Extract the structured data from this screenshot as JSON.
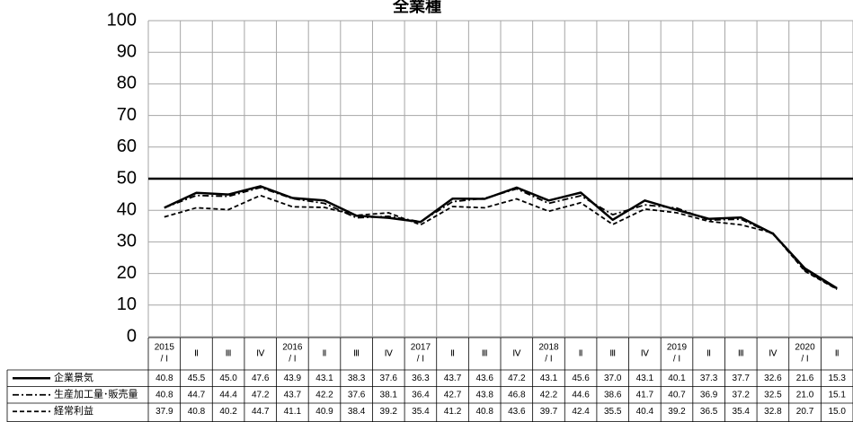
{
  "chart_data": {
    "type": "line",
    "title": "全業種",
    "ylim": [
      0,
      100
    ],
    "yticks": [
      0,
      10,
      20,
      30,
      40,
      50,
      60,
      70,
      80,
      90,
      100
    ],
    "reference_line": 50,
    "categories": [
      [
        "2015",
        "/ I"
      ],
      [
        "Ⅱ"
      ],
      [
        "Ⅲ"
      ],
      [
        "Ⅳ"
      ],
      [
        "2016",
        "/ I"
      ],
      [
        "Ⅱ"
      ],
      [
        "Ⅲ"
      ],
      [
        "Ⅳ"
      ],
      [
        "2017",
        "/ I"
      ],
      [
        "Ⅱ"
      ],
      [
        "Ⅲ"
      ],
      [
        "Ⅳ"
      ],
      [
        "2018",
        "/ I"
      ],
      [
        "Ⅱ"
      ],
      [
        "Ⅲ"
      ],
      [
        "Ⅳ"
      ],
      [
        "2019",
        "/ I"
      ],
      [
        "Ⅱ"
      ],
      [
        "Ⅲ"
      ],
      [
        "Ⅳ"
      ],
      [
        "2020",
        "/ I"
      ],
      [
        "Ⅱ"
      ]
    ],
    "series": [
      {
        "name": "企業景気",
        "style": "solid",
        "values": [
          40.8,
          45.5,
          45.0,
          47.6,
          43.9,
          43.1,
          38.3,
          37.6,
          36.3,
          43.7,
          43.6,
          47.2,
          43.1,
          45.6,
          37.0,
          43.1,
          40.1,
          37.3,
          37.7,
          32.6,
          21.6,
          15.3
        ],
        "labels": [
          "40.8",
          "45.5",
          "45.0",
          "47.6",
          "43.9",
          "43.1",
          "38.3",
          "37.6",
          "36.3",
          "43.7",
          "43.6",
          "47.2",
          "43.1",
          "45.6",
          "37.0",
          "43.1",
          "40.1",
          "37.3",
          "37.7",
          "32.6",
          "21.6",
          "15.3"
        ]
      },
      {
        "name": "生産加工量･販売量",
        "style": "dashdot",
        "values": [
          40.8,
          44.7,
          44.4,
          47.2,
          43.7,
          42.2,
          37.6,
          38.1,
          36.4,
          42.7,
          43.8,
          46.8,
          42.2,
          44.6,
          38.6,
          41.7,
          40.7,
          36.9,
          37.2,
          32.5,
          21.0,
          15.1
        ],
        "labels": [
          "40.8",
          "44.7",
          "44.4",
          "47.2",
          "43.7",
          "42.2",
          "37.6",
          "38.1",
          "36.4",
          "42.7",
          "43.8",
          "46.8",
          "42.2",
          "44.6",
          "38.6",
          "41.7",
          "40.7",
          "36.9",
          "37.2",
          "32.5",
          "21.0",
          "15.1"
        ]
      },
      {
        "name": "経常利益",
        "style": "dashed",
        "values": [
          37.9,
          40.8,
          40.2,
          44.7,
          41.1,
          40.9,
          38.4,
          39.2,
          35.4,
          41.2,
          40.8,
          43.6,
          39.7,
          42.4,
          35.5,
          40.4,
          39.2,
          36.5,
          35.4,
          32.8,
          20.7,
          15.0
        ],
        "labels": [
          "37.9",
          "40.8",
          "40.2",
          "44.7",
          "41.1",
          "40.9",
          "38.4",
          "39.2",
          "35.4",
          "41.2",
          "40.8",
          "43.6",
          "39.7",
          "42.4",
          "35.5",
          "40.4",
          "39.2",
          "36.5",
          "35.4",
          "32.8",
          "20.7",
          "15.0"
        ]
      }
    ],
    "colors": {
      "line": "#000000",
      "grid": "#a6a6a6"
    }
  }
}
